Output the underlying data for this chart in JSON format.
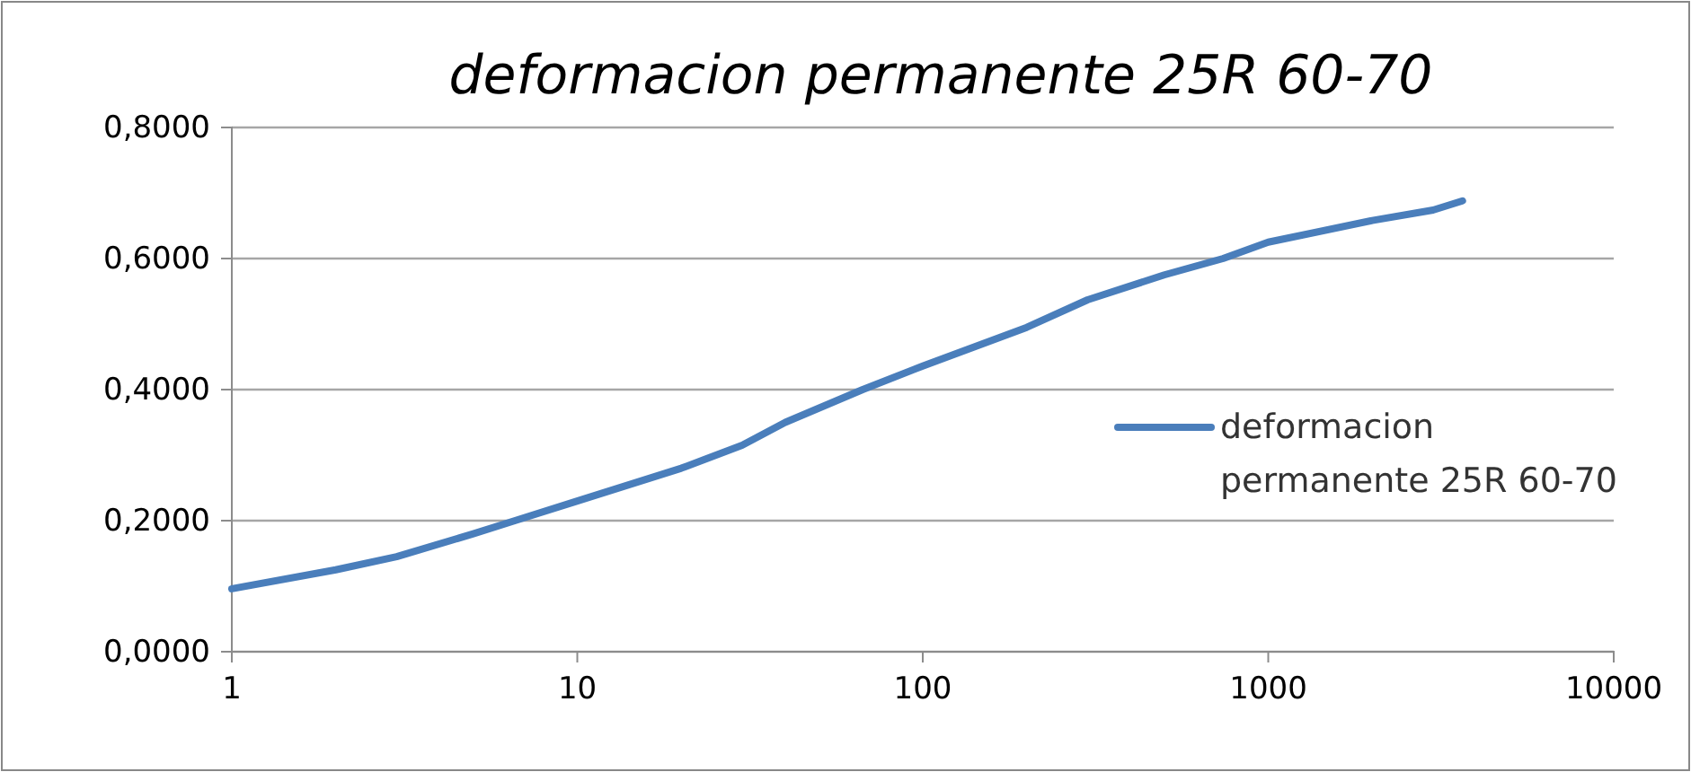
{
  "chart_data": {
    "type": "line",
    "title": "deformacion permanente 25R 60-70",
    "log": "x",
    "grid": "y",
    "legend": "right",
    "xlim": [
      1,
      10000
    ],
    "xticks": [
      1,
      10,
      100,
      1000,
      10000
    ],
    "ylim": [
      0,
      0.8
    ],
    "yticks": [
      {
        "value": 0,
        "label": "0,0000"
      },
      {
        "value": 0.2,
        "label": "0,2000"
      },
      {
        "value": 0.4,
        "label": "0,4000"
      },
      {
        "value": 0.6,
        "label": "0,6000"
      },
      {
        "value": 0.8,
        "label": "0,8000"
      }
    ],
    "series": [
      {
        "name": "deformacion permanente 25R 60-70",
        "color": "#4a7ebb",
        "x": [
          1,
          2,
          3,
          5,
          6.6,
          10,
          20,
          30,
          40,
          67,
          100,
          200,
          300,
          500,
          740,
          1000,
          2000,
          3000,
          3650
        ],
        "values": [
          0.096,
          0.125,
          0.145,
          0.18,
          0.2,
          0.23,
          0.28,
          0.315,
          0.35,
          0.4,
          0.436,
          0.495,
          0.537,
          0.575,
          0.6,
          0.625,
          0.658,
          0.674,
          0.688
        ]
      }
    ]
  }
}
